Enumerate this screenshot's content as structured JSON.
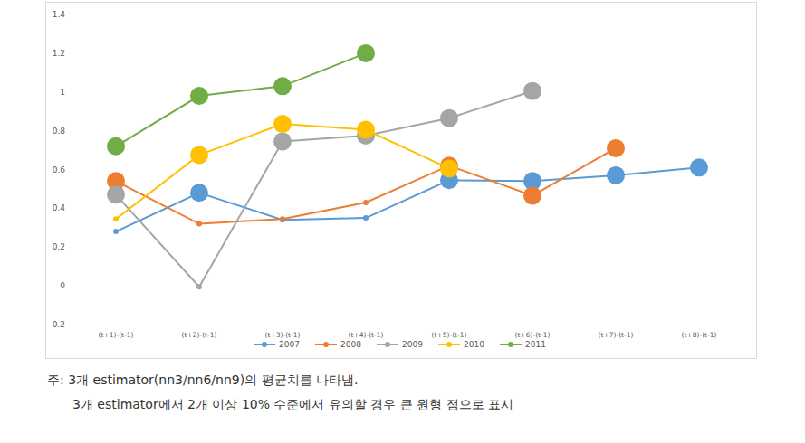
{
  "chart_data": {
    "type": "line",
    "categories": [
      "(t+1)-(t-1)",
      "(t+2)-(t-1)",
      "(t+3)-(t-1)",
      "(t+4)-(t-1)",
      "(t+5)-(t-1)",
      "(t+6)-(t-1)",
      "(t+7)-(t-1)",
      "(t+8)-(t-1)"
    ],
    "series": [
      {
        "name": "2007",
        "color": "#5b9bd5",
        "marker": "circle",
        "values": [
          0.28,
          0.48,
          0.34,
          0.35,
          0.545,
          0.54,
          0.57,
          0.61
        ],
        "significant": [
          false,
          true,
          false,
          false,
          true,
          true,
          true,
          true
        ]
      },
      {
        "name": "2008",
        "color": "#ed7d31",
        "marker": "circle",
        "values": [
          0.54,
          0.32,
          0.345,
          0.43,
          0.62,
          0.465,
          0.71,
          null
        ],
        "significant": [
          true,
          false,
          false,
          false,
          true,
          true,
          true,
          null
        ]
      },
      {
        "name": "2009",
        "color": "#a5a5a5",
        "marker": "circle",
        "values": [
          0.47,
          -0.005,
          0.745,
          0.775,
          0.865,
          1.005,
          null,
          null
        ],
        "significant": [
          true,
          false,
          true,
          true,
          true,
          true,
          null,
          null
        ]
      },
      {
        "name": "2010",
        "color": "#ffc000",
        "marker": "circle",
        "values": [
          0.345,
          0.675,
          0.835,
          0.805,
          0.605,
          null,
          null,
          null
        ],
        "significant": [
          false,
          true,
          true,
          true,
          true,
          null,
          null,
          null
        ]
      },
      {
        "name": "2011",
        "color": "#70ad47",
        "marker": "circle",
        "values": [
          0.72,
          0.98,
          1.03,
          1.2,
          null,
          null,
          null,
          null
        ],
        "significant": [
          true,
          true,
          true,
          true,
          null,
          null,
          null,
          null
        ]
      }
    ],
    "ylim": [
      -0.2,
      1.4
    ],
    "yticks": [
      -0.2,
      0,
      0.2,
      0.4,
      0.6,
      0.8,
      1,
      1.2,
      1.4
    ],
    "grid": false,
    "legend": "bottom",
    "notes": [
      "주: 3개 estimator(nn3/nn6/nn9)의 평균치를 나타냄.",
      "3개 estimator에서 2개 이상 10% 수준에서 유의할 경우 큰 원형 점으로 표시"
    ]
  }
}
